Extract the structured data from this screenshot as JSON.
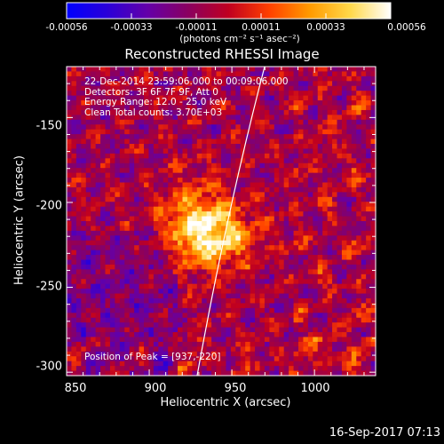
{
  "colorbar": {
    "ticks": [
      "-0.00056",
      "-0.00033",
      "-0.00011",
      "0.00011",
      "0.00033",
      "0.00056"
    ],
    "units": "(photons cm⁻² s⁻¹ asec⁻²)",
    "gradient": [
      "#0000ff",
      "#2a00d8",
      "#6400a8",
      "#8a0060",
      "#c00020",
      "#ff4000",
      "#ff9a00",
      "#ffd84a",
      "#ffffff"
    ]
  },
  "plot": {
    "title": "Reconstructed RHESSI Image",
    "info_lines": [
      "22-Dec-2014 23:59:06.000 to 00:09:06.000",
      "Detectors: 3F 6F 7F 9F, Att 0",
      "Energy Range: 12.0 - 25.0 keV",
      "Clean     Total counts: 3.70E+03"
    ],
    "peak_text": "Position of Peak = [937,-220]",
    "x_axis": {
      "label": "Heliocentric X (arcsec)",
      "ticks": [
        "850",
        "900",
        "950",
        "1000"
      ],
      "range": [
        850,
        1037
      ]
    },
    "y_axis": {
      "label": "Heliocentric Y (arcsec)",
      "ticks": [
        "-150",
        "-200",
        "-250",
        "-300"
      ],
      "range": [
        -302,
        -120
      ]
    },
    "peak": {
      "x": 937,
      "y": -220
    }
  },
  "footer": {
    "date": "16-Sep-2017 07:13"
  }
}
